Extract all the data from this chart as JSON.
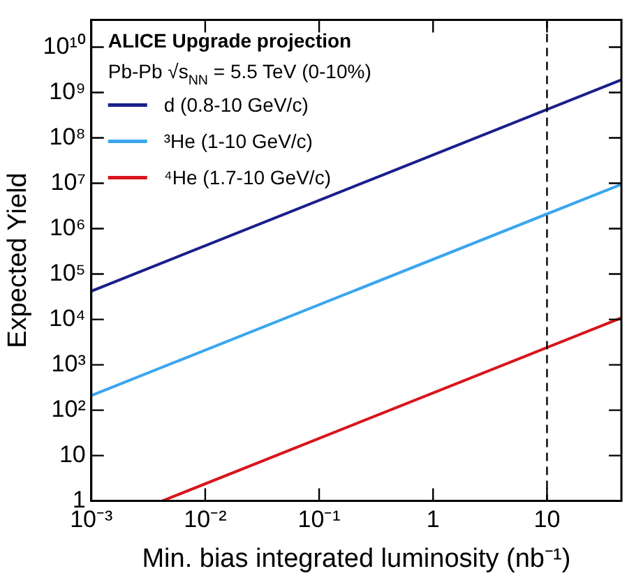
{
  "chart_data": {
    "type": "line",
    "xlabel": "Min. bias integrated luminosity (nb⁻¹)",
    "ylabel": "Expected Yield",
    "annotations": [
      "ALICE Upgrade projection",
      "Pb-Pb √s$_{NN}$ = 5.5 TeV (0-10%)"
    ],
    "log": "xy",
    "grid": false,
    "legend": "top left",
    "marker": "none",
    "line_style": "solid",
    "xlim": [
      0.001,
      45
    ],
    "ylim": [
      1,
      40000000000
    ],
    "xticks": [
      {
        "value": 0.001,
        "label": "10⁻³"
      },
      {
        "value": 0.01,
        "label": "10⁻²"
      },
      {
        "value": 0.1,
        "label": "10⁻¹"
      },
      1,
      10
    ],
    "yticks": [
      1,
      10,
      {
        "value": 100,
        "label": "10²"
      },
      {
        "value": 1000,
        "label": "10³"
      },
      {
        "value": 10000,
        "label": "10⁴"
      },
      {
        "value": 100000,
        "label": "10⁵"
      },
      {
        "value": 1000000,
        "label": "10⁶"
      },
      {
        "value": 10000000,
        "label": "10⁷"
      },
      {
        "value": 100000000,
        "label": "10⁸"
      },
      {
        "value": 1000000000,
        "label": "10⁹"
      },
      {
        "value": 10000000000,
        "label": "10¹⁰"
      }
    ],
    "ref_lines": [
      {
        "axis": "x",
        "value": 10,
        "color": "#000000",
        "line_style": "dashed"
      }
    ],
    "series": [
      {
        "name": "d (0.8-10 GeV/c)",
        "color": "#1a1f8c",
        "x": [
          0.001,
          45
        ],
        "values": [
          42000,
          1900000000
        ]
      },
      {
        "name": "³He (1-10 GeV/c)",
        "color": "#3aa6ef",
        "x": [
          0.001,
          45
        ],
        "values": [
          210,
          9500000
        ]
      },
      {
        "name": "⁴He (1.7-10 GeV/c)",
        "color": "#d8141c",
        "x": [
          0.0042,
          45
        ],
        "values": [
          1,
          10800
        ]
      }
    ]
  }
}
